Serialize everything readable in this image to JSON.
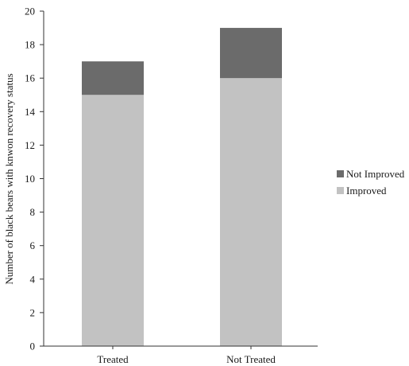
{
  "chart_data": {
    "type": "bar",
    "stacked": true,
    "title": "",
    "xlabel": "",
    "ylabel": "Number of black bears with knwon recovery status",
    "ylim": [
      0,
      20
    ],
    "yticks": [
      0,
      2,
      4,
      6,
      8,
      10,
      12,
      14,
      16,
      18,
      20
    ],
    "categories": [
      "Treated",
      "Not Treated"
    ],
    "series": [
      {
        "name": "Improved",
        "values": [
          15,
          16
        ],
        "color": "#c2c2c2"
      },
      {
        "name": "Not Improved",
        "values": [
          2,
          3
        ],
        "color": "#6b6b6b"
      }
    ],
    "legend": {
      "placement": "right",
      "items": [
        "Not Improved",
        "Improved"
      ]
    },
    "grid": false
  }
}
